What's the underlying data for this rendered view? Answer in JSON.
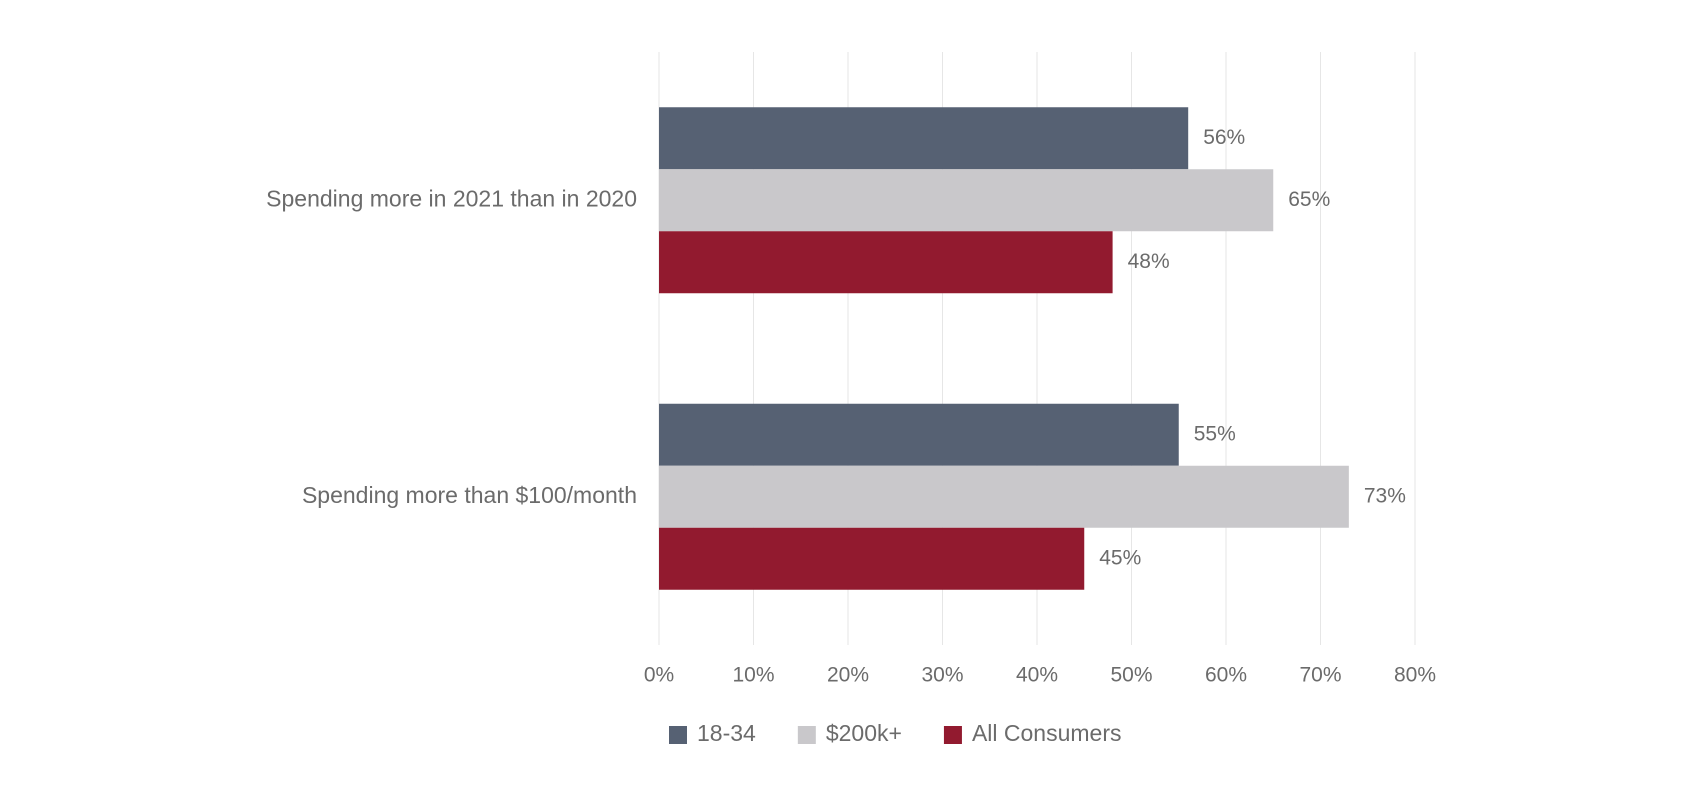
{
  "chart_data": {
    "type": "hbar",
    "categories": [
      "Spending more in 2021 than in 2020",
      "Spending more than $100/month"
    ],
    "series": [
      {
        "name": "18-34",
        "color": "#566173",
        "values": [
          56,
          55
        ],
        "value_labels": [
          "56%",
          "55%"
        ]
      },
      {
        "name": "$200k+",
        "color": "#c9c8cb",
        "values": [
          65,
          73
        ],
        "value_labels": [
          "65%",
          "73%"
        ]
      },
      {
        "name": "All Consumers",
        "color": "#921a2f",
        "values": [
          48,
          45
        ],
        "value_labels": [
          "48%",
          "45%"
        ]
      }
    ],
    "xlim": [
      0,
      80
    ],
    "xticks": [
      {
        "value": 0,
        "label": "0%"
      },
      {
        "value": 10,
        "label": "10%"
      },
      {
        "value": 20,
        "label": "20%"
      },
      {
        "value": 30,
        "label": "30%"
      },
      {
        "value": 40,
        "label": "40%"
      },
      {
        "value": 50,
        "label": "50%"
      },
      {
        "value": 60,
        "label": "60%"
      },
      {
        "value": 70,
        "label": "70%"
      },
      {
        "value": 80,
        "label": "80%"
      }
    ],
    "grid": true,
    "legend": "bottom"
  }
}
